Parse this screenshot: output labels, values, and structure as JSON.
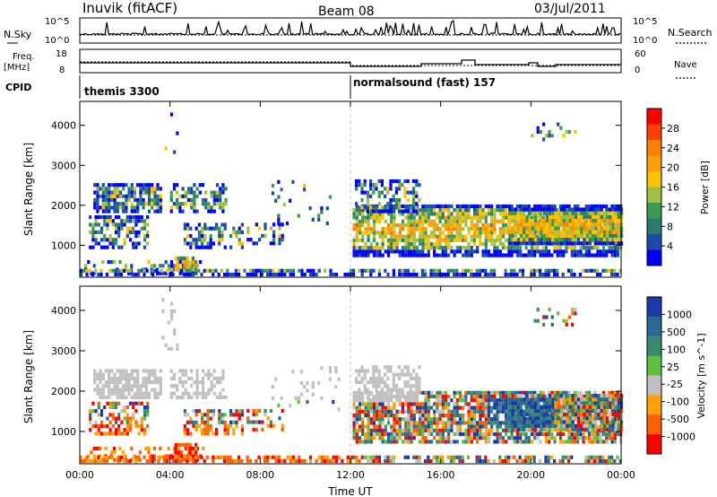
{
  "header": {
    "station": "Inuvik (fitACF)",
    "beam": "Beam 08",
    "date": "03/Jul/2011"
  },
  "noise_panel": {
    "left_label": "N.Sky",
    "right_label": "N.Search",
    "left_ticks": [
      "10^5",
      "10^0"
    ],
    "right_ticks": [
      "10^5",
      "10^0"
    ]
  },
  "freq_panel": {
    "left_label": "Freq.",
    "left_unit": "[MHz]",
    "right_label": "Nave",
    "left_ticks": [
      "18",
      "8"
    ],
    "right_ticks": [
      "60",
      "0"
    ]
  },
  "cpid_panel": {
    "label": "CPID",
    "segments": [
      "themis 3300",
      "normalsound (fast) 157"
    ]
  },
  "chart_data": [
    {
      "type": "heatmap",
      "name": "power",
      "ylabel": "Slant Range [km]",
      "xlabel": "",
      "x_ticks": [
        "00:00",
        "04:00",
        "08:00",
        "12:00",
        "16:00",
        "20:00",
        "00:00"
      ],
      "y_ticks": [
        "1000",
        "2000",
        "3000",
        "4000"
      ],
      "ylim": [
        200,
        4600
      ],
      "xlim_hours": [
        0,
        24
      ],
      "colorbar": {
        "label": "Power [dB]",
        "ticks": [
          "28",
          "24",
          "20",
          "16",
          "12",
          "8",
          "4"
        ],
        "colors": [
          "#ff0000",
          "#ff4000",
          "#ff8000",
          "#ffa000",
          "#ffc000",
          "#a0c040",
          "#3a9a50",
          "#2a7a70",
          "#1a4aaa",
          "#0000ff"
        ]
      },
      "regions": [
        {
          "t0": 0.5,
          "t1": 3.8,
          "r0": 1000,
          "r1": 2500,
          "level": "mixed"
        },
        {
          "t0": 4.5,
          "t1": 5.2,
          "r0": 250,
          "r1": 600,
          "level": "high"
        },
        {
          "t0": 12.0,
          "t1": 24.0,
          "r0": 700,
          "r1": 2200,
          "level": "high"
        }
      ]
    },
    {
      "type": "heatmap",
      "name": "velocity",
      "ylabel": "Slant Range [km]",
      "xlabel": "Time UT",
      "x_ticks": [
        "00:00",
        "04:00",
        "08:00",
        "12:00",
        "16:00",
        "20:00",
        "00:00"
      ],
      "y_ticks": [
        "1000",
        "2000",
        "3000",
        "4000"
      ],
      "ylim": [
        200,
        4600
      ],
      "xlim_hours": [
        0,
        24
      ],
      "colorbar": {
        "label": "Velocity [m s^-1]",
        "ticks": [
          "1000",
          "500",
          "100",
          "25",
          "-25",
          "-100",
          "-500",
          "-1000"
        ],
        "colors": [
          "#1a3aaa",
          "#2a6a90",
          "#3a8a70",
          "#60c040",
          "#c0c0c0",
          "#ffa000",
          "#ff6000",
          "#ff0000"
        ]
      }
    }
  ],
  "colors": {
    "accent_red": "#ff0000",
    "accent_blue": "#0000ff",
    "ground_grey": "#c0c0c0"
  }
}
